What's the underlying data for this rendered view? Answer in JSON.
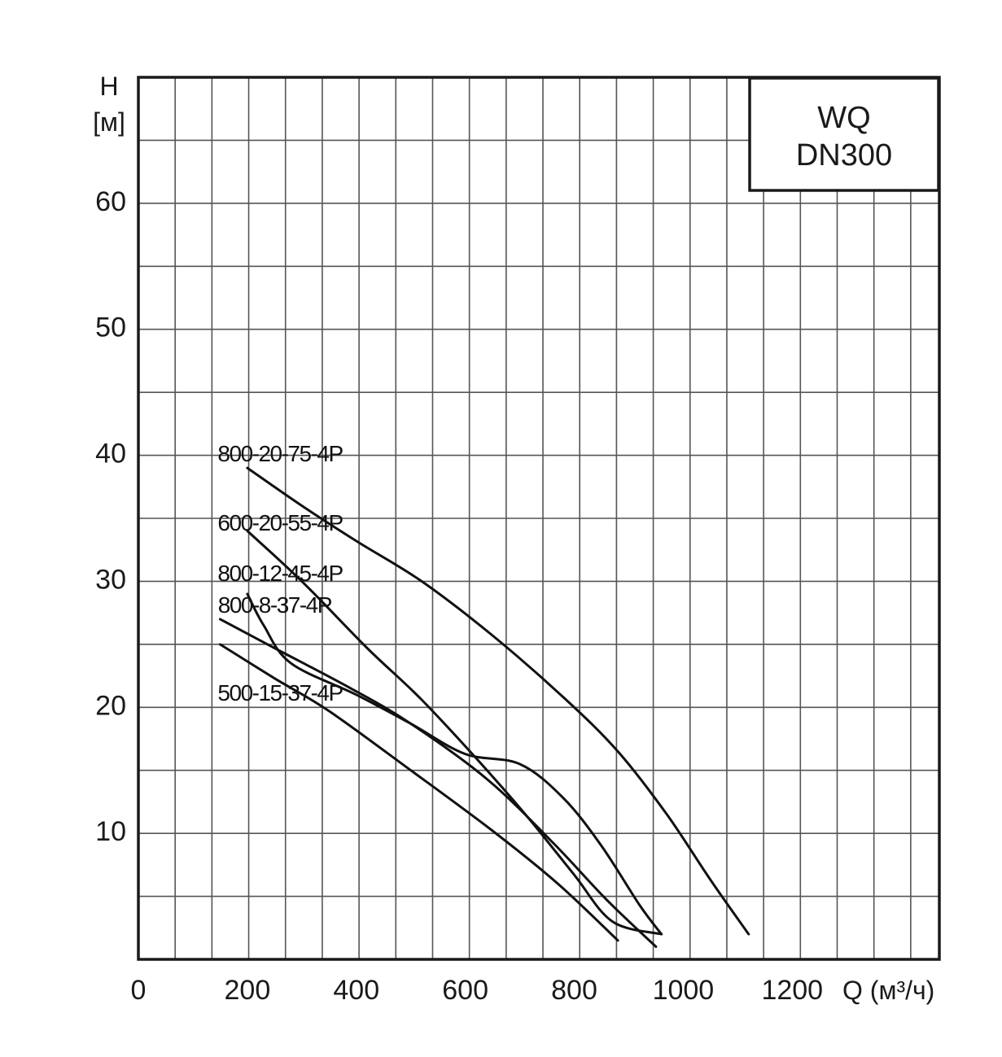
{
  "chart_data": {
    "type": "line",
    "title": [
      "WQ",
      "DN300"
    ],
    "xlabel": "Q (м³/ч)",
    "ylabel": [
      "H",
      "[м]"
    ],
    "xlim": [
      0,
      1470
    ],
    "ylim": [
      0,
      70
    ],
    "xticks": [
      "0",
      "200",
      "400",
      "600",
      "800",
      "1000",
      "1200"
    ],
    "yticks": [
      "10",
      "20",
      "30",
      "40",
      "50",
      "60"
    ],
    "grid": true,
    "colors": {
      "grid": "#555555",
      "frame": "#1a1a1a",
      "curve": "#111111"
    },
    "series": [
      {
        "name": "800-20-75-4P",
        "points": [
          [
            200,
            39
          ],
          [
            300,
            36
          ],
          [
            400,
            33.2
          ],
          [
            520,
            30
          ],
          [
            650,
            25.7
          ],
          [
            780,
            20.8
          ],
          [
            880,
            16.5
          ],
          [
            970,
            11.5
          ],
          [
            1050,
            6.3
          ],
          [
            1120,
            2
          ]
        ]
      },
      {
        "name": "600-20-55-4P",
        "points": [
          [
            200,
            34
          ],
          [
            300,
            30
          ],
          [
            420,
            24.7
          ],
          [
            520,
            20.6
          ],
          [
            640,
            15
          ],
          [
            720,
            11
          ],
          [
            800,
            6.7
          ],
          [
            870,
            3
          ],
          [
            960,
            2
          ]
        ]
      },
      {
        "name": "800-12-45-4P",
        "points": [
          [
            200,
            29
          ],
          [
            230,
            26.5
          ],
          [
            280,
            23.5
          ],
          [
            400,
            21
          ],
          [
            500,
            18.7
          ],
          [
            600,
            16.3
          ],
          [
            700,
            15.5
          ],
          [
            780,
            12.8
          ],
          [
            850,
            9
          ],
          [
            920,
            4.3
          ],
          [
            960,
            2
          ]
        ]
      },
      {
        "name": "800-8-37-4P",
        "points": [
          [
            150,
            27
          ],
          [
            250,
            24.7
          ],
          [
            390,
            21.5
          ],
          [
            500,
            18.7
          ],
          [
            640,
            14.3
          ],
          [
            760,
            9.3
          ],
          [
            860,
            4.7
          ],
          [
            950,
            1
          ]
        ]
      },
      {
        "name": "500-15-37-4P",
        "points": [
          [
            150,
            25
          ],
          [
            250,
            22.3
          ],
          [
            350,
            19.7
          ],
          [
            500,
            15
          ],
          [
            650,
            10.2
          ],
          [
            770,
            6
          ],
          [
            880,
            1.5
          ]
        ]
      }
    ],
    "label_points": [
      [
        260,
        40
      ],
      [
        260,
        34.5
      ],
      [
        260,
        30.5
      ],
      [
        250,
        28
      ],
      [
        260,
        21
      ]
    ]
  }
}
